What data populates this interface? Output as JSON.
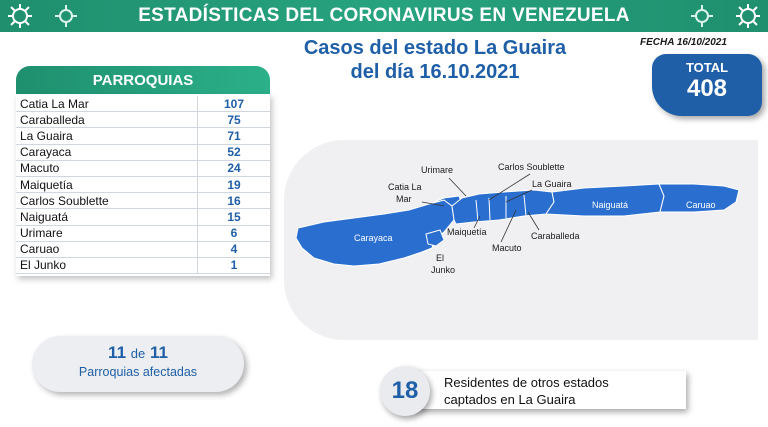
{
  "header": {
    "title": "ESTADÍSTICAS DEL CORONAVIRUS EN VENEZUELA"
  },
  "heading": {
    "line1": "Casos del estado La Guaira",
    "line2": "del día 16.10.2021",
    "fecha": "FECHA 16/10/2021"
  },
  "total": {
    "label": "TOTAL",
    "value": "408"
  },
  "parroquias": {
    "title": "PARROQUIAS",
    "rows": [
      {
        "name": "Catia La Mar",
        "value": "107"
      },
      {
        "name": "Caraballeda",
        "value": "75"
      },
      {
        "name": "La Guaira",
        "value": "71"
      },
      {
        "name": "Carayaca",
        "value": "52"
      },
      {
        "name": "Macuto",
        "value": "24"
      },
      {
        "name": "Maiquetía",
        "value": "19"
      },
      {
        "name": "Carlos Soublette",
        "value": "16"
      },
      {
        "name": "Naiguatá",
        "value": "15"
      },
      {
        "name": "Urimare",
        "value": "6"
      },
      {
        "name": "Caruao",
        "value": "4"
      },
      {
        "name": "El Junko",
        "value": "1"
      }
    ]
  },
  "map": {
    "labels": {
      "urimare": "Urimare",
      "carlos_soublette": "Carlos Soublette",
      "catia1": "Catia La",
      "catia2": "Mar",
      "la_guaira": "La Guaira",
      "naiguata": "Naiguatá",
      "caruao": "Caruao",
      "carayaca": "Carayaca",
      "maiquetia": "Maiquetía",
      "caraballeda": "Caraballeda",
      "macuto": "Macuto",
      "el": "El",
      "junko": "Junko"
    },
    "fill_color": "#2a6fd0"
  },
  "affected": {
    "count": "11",
    "de": "de",
    "total": "11",
    "label": "Parroquias  afectadas"
  },
  "residents": {
    "count": "18",
    "line1": "Residentes de otros estados",
    "line2": "captados en La Guaira"
  }
}
